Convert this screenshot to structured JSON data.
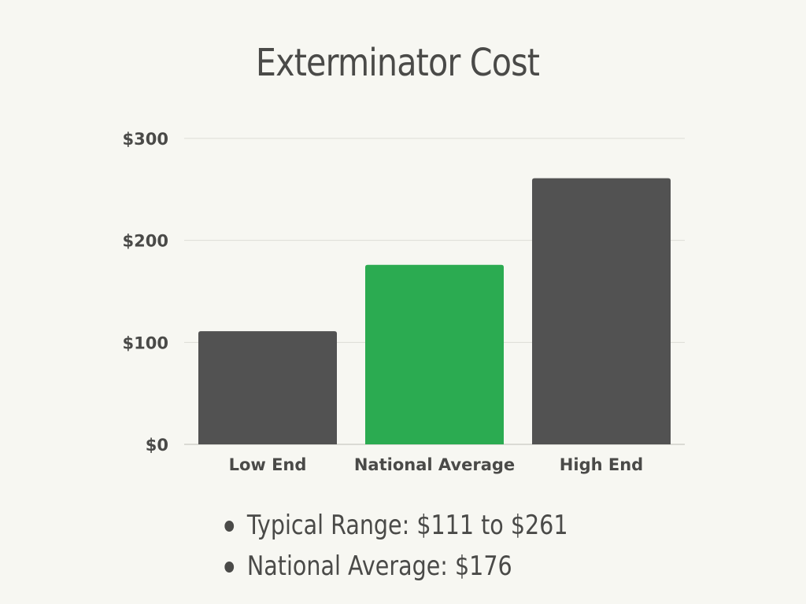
{
  "chart_data": {
    "type": "bar",
    "title": "Exterminator Cost",
    "categories": [
      "Low End",
      "National Average",
      "High End"
    ],
    "values": [
      111,
      176,
      261
    ],
    "ylim": [
      0,
      300
    ],
    "yticks": [
      0,
      100,
      200,
      300
    ],
    "ytick_labels": [
      "$0",
      "$100",
      "$200",
      "$300"
    ],
    "xlabel": "",
    "ylabel": "",
    "grid": true,
    "legend": "none",
    "bar_colors": [
      "#525252",
      "#2bab51",
      "#525252"
    ]
  },
  "bullets": [
    "Typical Range: $111 to $261",
    "National Average: $176"
  ],
  "colors": {
    "background": "#f7f7f2",
    "text": "#4a4a48",
    "gridline": "#dcdcd6",
    "accent": "#2bab51",
    "bar": "#525252"
  }
}
